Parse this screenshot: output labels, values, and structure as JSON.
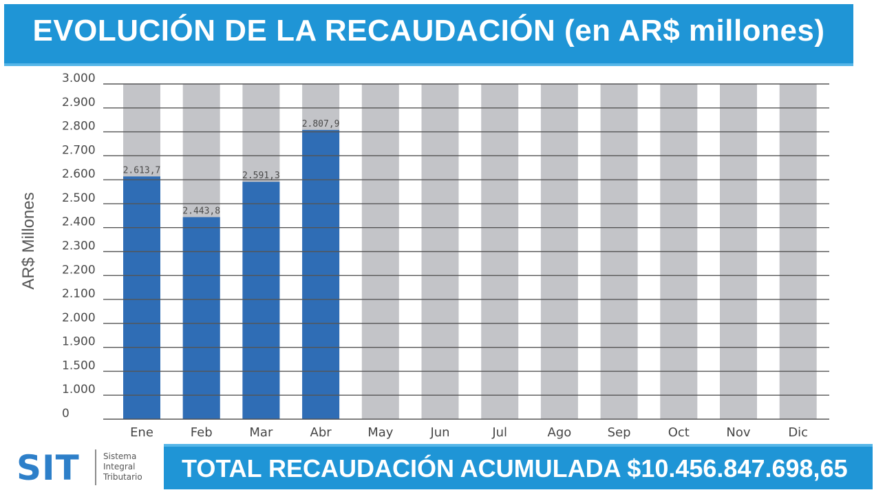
{
  "header": {
    "title": "EVOLUCIÓN DE LA RECAUDACIÓN (en AR$ millones)"
  },
  "colors": {
    "header_bg": "#1f95d6",
    "bar_actual": "#2f6db5",
    "bar_background": "#c3c4c8",
    "grid": "#555555"
  },
  "chart_data": {
    "type": "bar",
    "title": "EVOLUCIÓN DE LA RECAUDACIÓN (en AR$ millones)",
    "xlabel": "",
    "ylabel": "AR$ Millones",
    "ylim": [
      0,
      3000
    ],
    "y_ticks": [
      {
        "value": 3000,
        "label": "3.000"
      },
      {
        "value": 2900,
        "label": "2.900"
      },
      {
        "value": 2800,
        "label": "2.800"
      },
      {
        "value": 2700,
        "label": "2.700"
      },
      {
        "value": 2600,
        "label": "2.600"
      },
      {
        "value": 2500,
        "label": "2.500"
      },
      {
        "value": 2400,
        "label": "2.400"
      },
      {
        "value": 2300,
        "label": "2.300"
      },
      {
        "value": 2200,
        "label": "2.200"
      },
      {
        "value": 2100,
        "label": "2.100"
      },
      {
        "value": 2000,
        "label": "2.000"
      },
      {
        "value": 1900,
        "label": "1.900"
      },
      {
        "value": 1500,
        "label": "1.500"
      },
      {
        "value": 1000,
        "label": "1.000"
      },
      {
        "value": 0,
        "label": "0"
      }
    ],
    "categories": [
      "Ene",
      "Feb",
      "Mar",
      "Abr",
      "May",
      "Jun",
      "Jul",
      "Ago",
      "Sep",
      "Oct",
      "Nov",
      "Dic"
    ],
    "values": [
      2613.7,
      2443.8,
      2591.3,
      2807.9,
      null,
      null,
      null,
      null,
      null,
      null,
      null,
      null
    ],
    "value_labels": [
      "2.613,7",
      "2.443,8",
      "2.591,3",
      "2.807,9",
      "",
      "",
      "",
      "",
      "",
      "",
      "",
      ""
    ],
    "background_max": 3000,
    "grid": true,
    "legend": "none"
  },
  "logo": {
    "name": "SIT",
    "sub_lines": [
      "Sistema",
      "Integral",
      "Tributario"
    ]
  },
  "footer": {
    "total_text": "TOTAL RECAUDACIÓN ACUMULADA $10.456.847.698,65"
  }
}
